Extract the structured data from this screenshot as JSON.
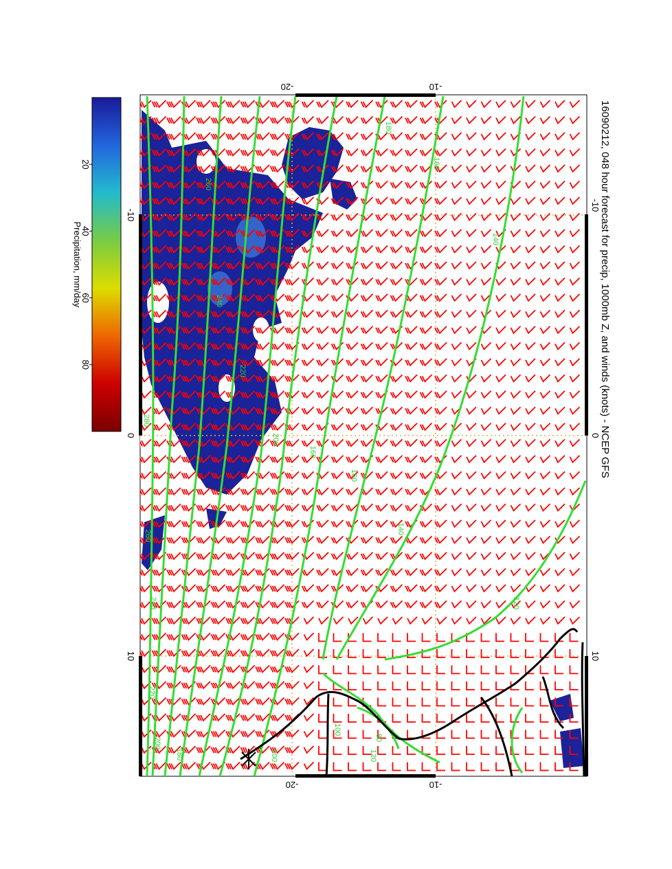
{
  "title": "16090212, 048 hour forecast for precip, 1000mb Z, and winds (knots) - NCEP GFS",
  "colorbar": {
    "label": "Precipitation, mm/day",
    "ticks": [
      "20",
      "40",
      "60",
      "80"
    ],
    "stops": [
      "#7a0000",
      "#cc0000",
      "#ee6600",
      "#dddd00",
      "#77cc44",
      "#22bbcc",
      "#2266dd",
      "#1a1a99"
    ]
  },
  "axes": {
    "top_labels": [
      "-20",
      "-10"
    ],
    "bottom_labels": [
      "-20",
      "-10"
    ],
    "left_labels": [
      "-10",
      "0",
      "10"
    ],
    "right_labels": [
      "-10",
      "0",
      "10"
    ]
  },
  "contour_labels": [
    "180",
    "160",
    "140",
    "120",
    "160",
    "160",
    "140",
    "120",
    "200",
    "220",
    "260",
    "240",
    "280",
    "260",
    "240",
    "220",
    "200",
    "180",
    "100",
    "80",
    "100"
  ],
  "colors": {
    "frame": "#000000",
    "wind_barbs": "#ff0000",
    "contours": "#33dd33",
    "precip": "#1a2399",
    "grid": "#e0b040",
    "coast": "#000000"
  }
}
